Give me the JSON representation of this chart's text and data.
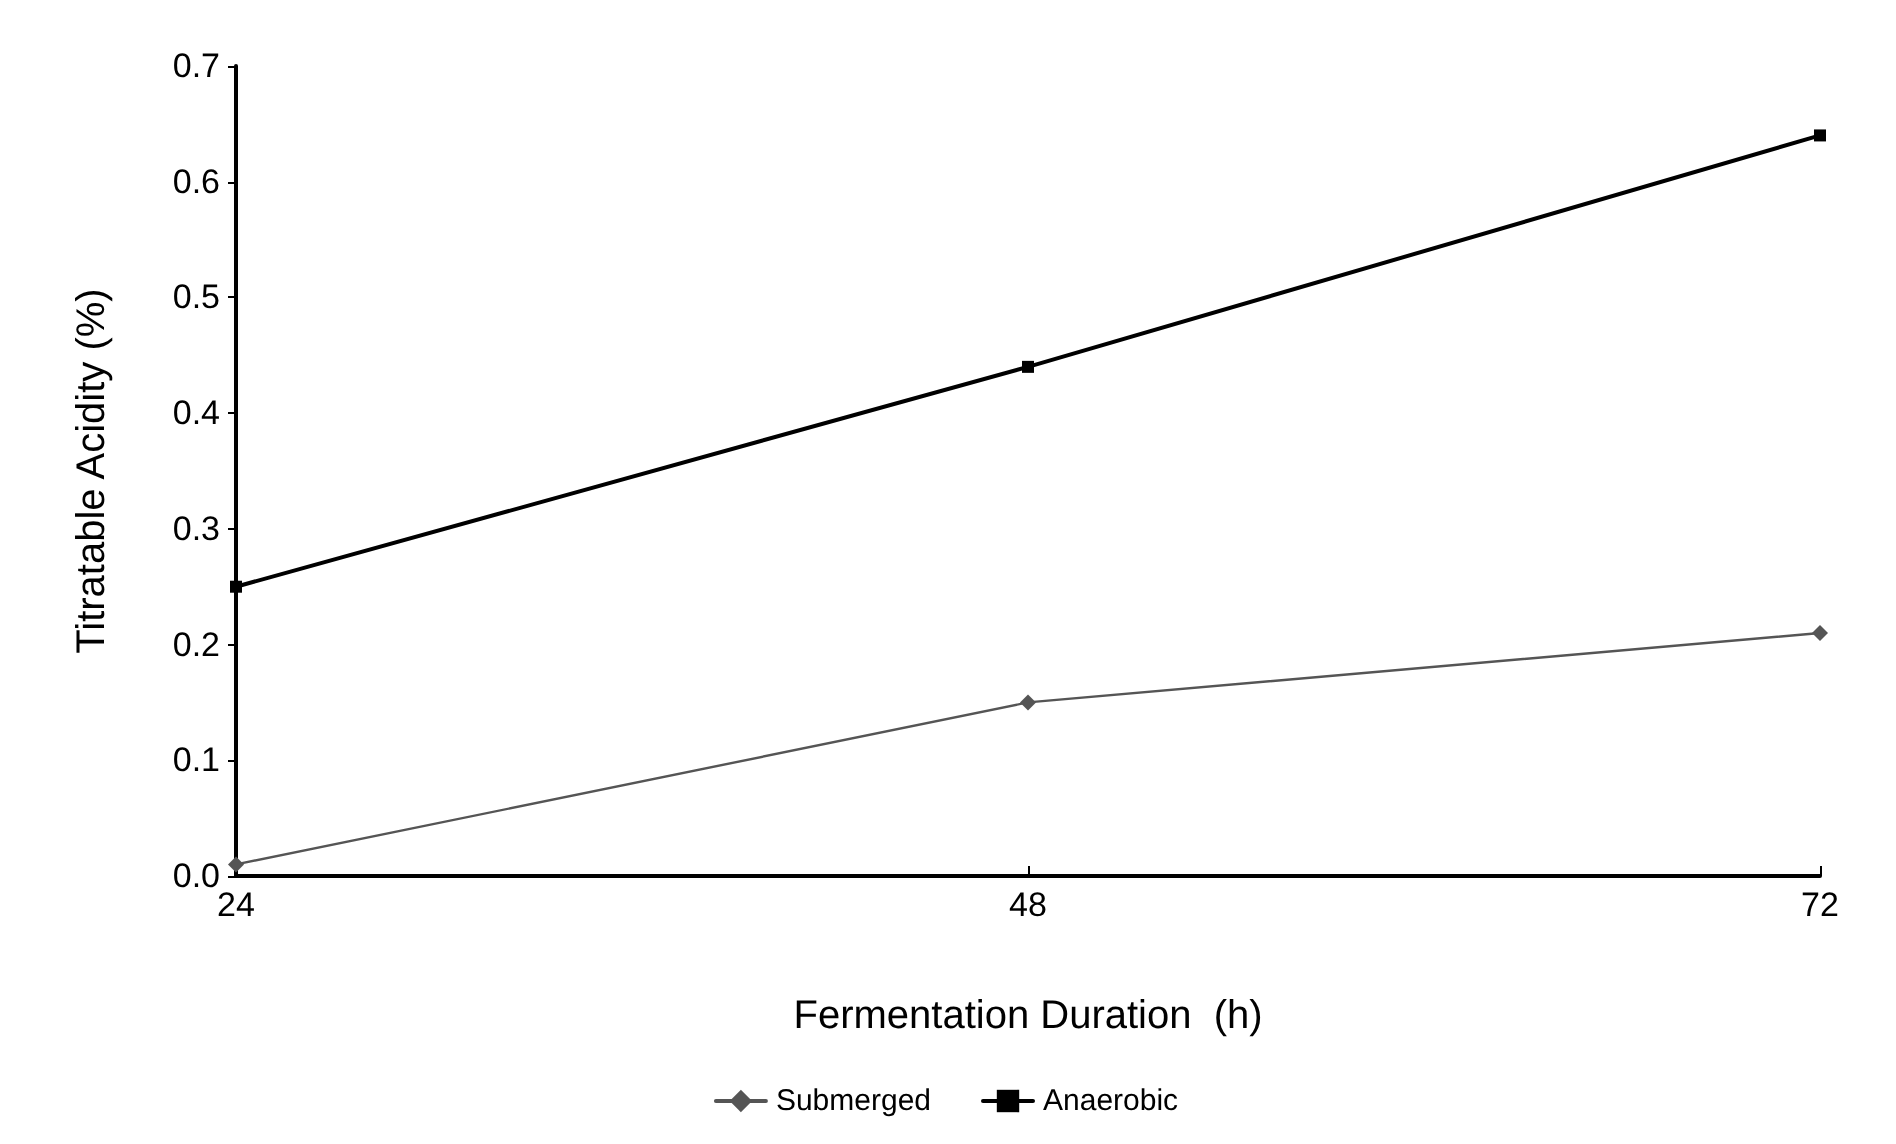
{
  "chart_data": {
    "type": "line",
    "xlabel": "Fermentation Duration  (h)",
    "ylabel": "Titratable Acidity (%)",
    "x": [
      24,
      48,
      72
    ],
    "series": [
      {
        "name": "Submerged",
        "color": "#555555",
        "marker": "diamond",
        "values": [
          0.01,
          0.15,
          0.21
        ]
      },
      {
        "name": "Anaerobic",
        "color": "#000000",
        "marker": "square",
        "values": [
          0.25,
          0.44,
          0.64
        ]
      }
    ],
    "xlim": [
      24,
      72
    ],
    "xticks": [
      24,
      48,
      72
    ],
    "ylim": [
      0,
      0.7
    ],
    "yticks": [
      {
        "value": 0,
        "label": "0.0"
      },
      {
        "value": 0.1,
        "label": "0.1"
      },
      {
        "value": 0.2,
        "label": "0.2"
      },
      {
        "value": 0.3,
        "label": "0.3"
      },
      {
        "value": 0.4,
        "label": "0.4"
      },
      {
        "value": 0.5,
        "label": "0.5"
      },
      {
        "value": 0.6,
        "label": "0.6"
      },
      {
        "value": 0.7,
        "label": "0.7"
      }
    ],
    "grid": false,
    "legend": "bottom",
    "line_style": "solid"
  }
}
